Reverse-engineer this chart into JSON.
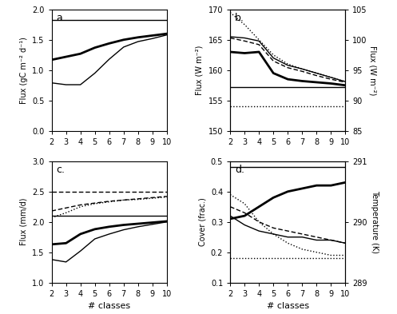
{
  "x": [
    2,
    3,
    4,
    5,
    6,
    7,
    8,
    9,
    10
  ],
  "panel_a": {
    "title": "a.",
    "ylabel": "Flux (gC m⁻² d⁻¹)",
    "ylim": [
      0.0,
      2.0
    ],
    "yticks": [
      0.0,
      0.5,
      1.0,
      1.5,
      2.0
    ],
    "hline": 1.83,
    "thick_line": [
      1.17,
      1.22,
      1.27,
      1.37,
      1.44,
      1.5,
      1.54,
      1.57,
      1.6
    ],
    "thin_line": [
      0.79,
      0.76,
      0.76,
      0.95,
      1.18,
      1.38,
      1.47,
      1.52,
      1.58
    ]
  },
  "panel_b": {
    "title": "b.",
    "ylabel_left": "Flux (W m⁻²)",
    "ylabel_right": "Flux (W m⁻²)",
    "ylim_left": [
      150,
      170
    ],
    "ylim_right": [
      85,
      105
    ],
    "yticks_left": [
      150,
      155,
      160,
      165,
      170
    ],
    "yticks_right": [
      85,
      90,
      95,
      100,
      105
    ],
    "hline_solid": 157.2,
    "hline_dotted": 154.0,
    "thick_solid": [
      163.0,
      162.8,
      163.0,
      159.5,
      158.5,
      158.2,
      158.0,
      157.8,
      157.5
    ],
    "thin_solid": [
      165.5,
      165.3,
      164.8,
      162.0,
      160.8,
      160.2,
      159.5,
      158.8,
      158.1
    ],
    "dashed": [
      165.3,
      164.8,
      164.2,
      161.5,
      160.4,
      159.8,
      159.1,
      158.5,
      158.0
    ],
    "dotted": [
      169.5,
      167.5,
      165.0,
      162.5,
      161.0,
      160.2,
      159.5,
      158.8,
      158.1
    ]
  },
  "panel_c": {
    "title": "c.",
    "ylabel": "Flux (mm/d)",
    "ylim": [
      1.0,
      3.0
    ],
    "yticks": [
      1.0,
      1.5,
      2.0,
      2.5,
      3.0
    ],
    "hline_solid": 2.1,
    "hline_dashed": 2.5,
    "thick_solid": [
      1.63,
      1.65,
      1.8,
      1.88,
      1.92,
      1.95,
      1.97,
      1.99,
      2.01
    ],
    "thin_solid": [
      1.38,
      1.34,
      1.52,
      1.72,
      1.8,
      1.87,
      1.92,
      1.96,
      2.0
    ],
    "dashed": [
      2.18,
      2.23,
      2.28,
      2.31,
      2.34,
      2.36,
      2.38,
      2.4,
      2.42
    ],
    "dotted": [
      2.07,
      2.15,
      2.25,
      2.3,
      2.33,
      2.36,
      2.37,
      2.39,
      2.41
    ]
  },
  "panel_d": {
    "title": "d.",
    "ylabel_left": "Cover (frac.)",
    "ylabel_right": "Temperature (K)",
    "ylim_left": [
      0.1,
      0.5
    ],
    "ylim_right": [
      289,
      291
    ],
    "yticks_left": [
      0.1,
      0.2,
      0.3,
      0.4,
      0.5
    ],
    "yticks_right": [
      289,
      290,
      291
    ],
    "hline_solid": 0.48,
    "hline_dotted": 0.18,
    "thick_solid": [
      0.31,
      0.32,
      0.35,
      0.38,
      0.4,
      0.41,
      0.42,
      0.42,
      0.43
    ],
    "thin_solid": [
      0.32,
      0.29,
      0.27,
      0.26,
      0.25,
      0.25,
      0.24,
      0.24,
      0.23
    ],
    "dashed": [
      0.35,
      0.33,
      0.3,
      0.28,
      0.27,
      0.26,
      0.25,
      0.24,
      0.23
    ],
    "dotted": [
      0.39,
      0.36,
      0.3,
      0.26,
      0.23,
      0.21,
      0.2,
      0.19,
      0.19
    ]
  },
  "linewidth_thick": 2.0,
  "linewidth_thin": 1.0,
  "color": "black"
}
